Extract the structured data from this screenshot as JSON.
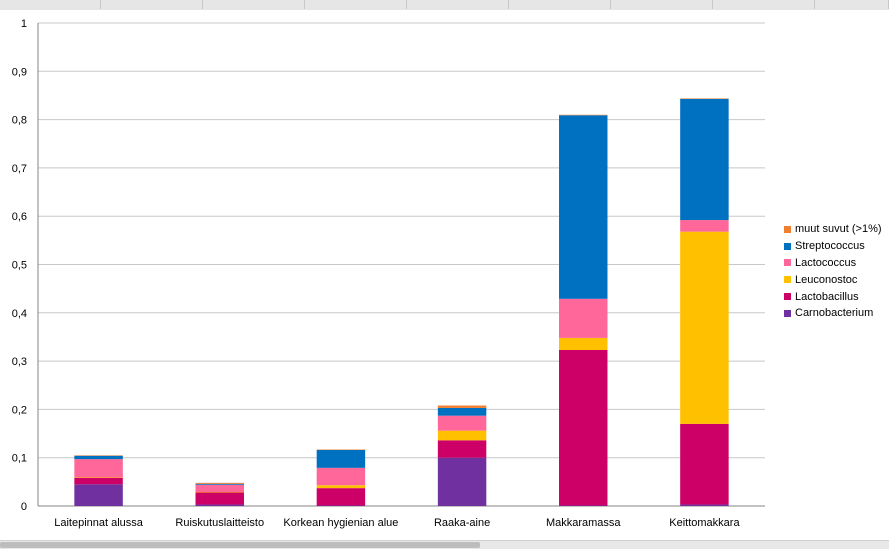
{
  "chart_data": {
    "type": "bar",
    "stacked": true,
    "categories": [
      "Laitepinnat alussa",
      "Ruiskutuslaitteisto",
      "Korkean hygienian alue",
      "Raaka-aine",
      "Makkaramassa",
      "Keittomakkara"
    ],
    "series": [
      {
        "name": "Carnobacterium",
        "color": "#7030a0",
        "values": [
          0.045,
          0.003,
          0.001,
          0.1,
          0.001,
          0.003
        ]
      },
      {
        "name": "Lactobacillus",
        "color": "#cc0066",
        "values": [
          0.013,
          0.025,
          0.036,
          0.036,
          0.322,
          0.167
        ]
      },
      {
        "name": "Leuconostoc",
        "color": "#ffc000",
        "values": [
          0.001,
          0.001,
          0.006,
          0.02,
          0.025,
          0.398
        ]
      },
      {
        "name": "Lactococcus",
        "color": "#ff6699",
        "values": [
          0.038,
          0.015,
          0.036,
          0.031,
          0.081,
          0.024
        ]
      },
      {
        "name": "Streptococcus",
        "color": "#0070c0",
        "values": [
          0.007,
          0.002,
          0.037,
          0.016,
          0.38,
          0.251
        ]
      },
      {
        "name": "muut suvut (>1%)",
        "color": "#f08030",
        "values": [
          0.001,
          0.002,
          0.001,
          0.005,
          0.001,
          0.001
        ]
      }
    ],
    "ylim": [
      0,
      1
    ],
    "yticks": [
      "0",
      "0,1",
      "0,2",
      "0,3",
      "0,4",
      "0,5",
      "0,6",
      "0,7",
      "0,8",
      "0,9",
      "1"
    ],
    "grid": true,
    "legend_position": "right",
    "legend_order": [
      "muut suvut (>1%)",
      "Streptococcus",
      "Lactococcus",
      "Leuconostoc",
      "Lactobacillus",
      "Carnobacterium"
    ]
  }
}
